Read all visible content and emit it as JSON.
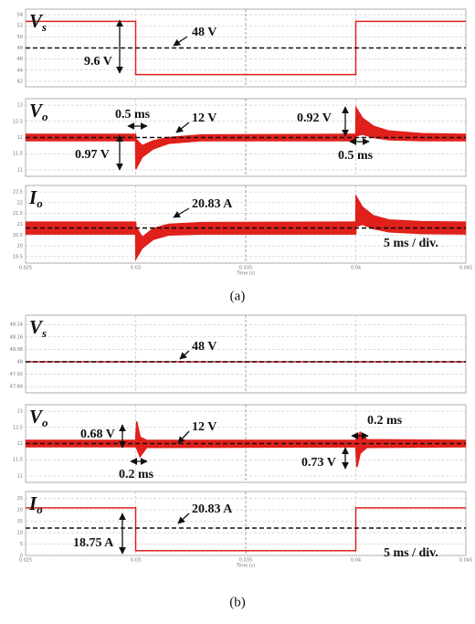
{
  "chart_data": [
    {
      "type": "line",
      "label": "V",
      "label_sub": "s",
      "xlim": [
        0.025,
        0.045
      ],
      "xticks": [
        0.025,
        0.03,
        0.035,
        0.04,
        0.045
      ],
      "ylim": [
        41,
        55
      ],
      "yticks": [
        42,
        44,
        46,
        48,
        50,
        52,
        54
      ],
      "grid": true,
      "ref": 48,
      "x": [
        0.025,
        0.03,
        0.03,
        0.04,
        0.04,
        0.045
      ],
      "series": [
        {
          "color": "#e0201b",
          "values": [
            52.8,
            52.8,
            43.2,
            43.2,
            52.8,
            52.8
          ]
        }
      ],
      "annotations": [
        "48 V",
        "9.6 V"
      ]
    },
    {
      "type": "band",
      "label": "V",
      "label_sub": "o",
      "xlim": [
        0.025,
        0.045
      ],
      "xticks": [
        0.025,
        0.03,
        0.035,
        0.04,
        0.045
      ],
      "ylim": [
        10.8,
        13.2
      ],
      "yticks": [
        11,
        11.5,
        12,
        12.5,
        13
      ],
      "grid": true,
      "ref": 12,
      "x": [
        0.025,
        0.03,
        0.03001,
        0.0303,
        0.0308,
        0.0315,
        0.033,
        0.04,
        0.04001,
        0.0403,
        0.0408,
        0.0415,
        0.043,
        0.045
      ],
      "series": [
        {
          "color": "#e0201b",
          "values": [
            12.1,
            12.1,
            11.95,
            11.75,
            11.9,
            12.0,
            12.08,
            12.1,
            12.92,
            12.6,
            12.35,
            12.2,
            12.12,
            12.1
          ]
        },
        {
          "color": "#e0201b",
          "values": [
            11.9,
            11.9,
            11.03,
            11.4,
            11.65,
            11.82,
            11.9,
            11.9,
            12.05,
            12.1,
            12.0,
            11.93,
            11.9,
            11.9
          ]
        }
      ],
      "annotations": [
        "0.5 ms",
        "12 V",
        "0.97 V",
        "0.92 V",
        "0.5 ms"
      ]
    },
    {
      "type": "band",
      "label": "I",
      "label_sub": "o",
      "xlim": [
        0.025,
        0.045
      ],
      "xticks": [
        0.025,
        0.03,
        0.035,
        0.04,
        0.045
      ],
      "ylim": [
        19.2,
        22.8
      ],
      "yticks": [
        19.5,
        20,
        20.5,
        21,
        21.5,
        22,
        22.5
      ],
      "grid": true,
      "ref": 20.83,
      "xlabel": "Time (s)",
      "x": [
        0.025,
        0.03,
        0.03001,
        0.0303,
        0.0308,
        0.0315,
        0.033,
        0.04,
        0.04001,
        0.0403,
        0.0408,
        0.0415,
        0.043,
        0.045
      ],
      "series": [
        {
          "color": "#e0201b",
          "values": [
            21.1,
            21.1,
            20.9,
            20.4,
            20.8,
            21.0,
            21.08,
            21.1,
            22.3,
            21.8,
            21.4,
            21.2,
            21.12,
            21.1
          ]
        },
        {
          "color": "#e0201b",
          "values": [
            20.55,
            20.55,
            19.4,
            19.9,
            20.3,
            20.5,
            20.55,
            20.55,
            20.9,
            21.0,
            20.8,
            20.65,
            20.57,
            20.55
          ]
        }
      ],
      "annotations": [
        "20.83 A",
        "5 ms / div."
      ],
      "caption": "(a)"
    },
    {
      "type": "line",
      "label": "V",
      "label_sub": "s",
      "xlim": [
        0.025,
        0.045
      ],
      "xticks": [
        0.025,
        0.03,
        0.035,
        0.04,
        0.045
      ],
      "ylim": [
        47.8,
        48.3
      ],
      "yticks": [
        47.84,
        47.92,
        48,
        48.08,
        48.16,
        48.24
      ],
      "grid": true,
      "ref": 48,
      "x": [
        0.025,
        0.045
      ],
      "series": [
        {
          "color": "#e0201b",
          "values": [
            48,
            48
          ]
        }
      ],
      "annotations": [
        "48 V"
      ]
    },
    {
      "type": "band",
      "label": "V",
      "label_sub": "o",
      "xlim": [
        0.025,
        0.045
      ],
      "xticks": [
        0.025,
        0.03,
        0.035,
        0.04,
        0.045
      ],
      "ylim": [
        10.8,
        13.2
      ],
      "yticks": [
        11,
        11.5,
        12,
        12.5,
        13
      ],
      "grid": true,
      "ref": 12,
      "x": [
        0.025,
        0.03,
        0.03005,
        0.0302,
        0.0305,
        0.04,
        0.04005,
        0.0402,
        0.0405,
        0.045
      ],
      "series": [
        {
          "color": "#e0201b",
          "values": [
            12.1,
            12.1,
            12.68,
            12.2,
            12.1,
            12.1,
            12.2,
            12.35,
            12.12,
            12.1
          ]
        },
        {
          "color": "#e0201b",
          "values": [
            11.9,
            11.9,
            11.85,
            11.6,
            11.88,
            11.9,
            11.27,
            11.7,
            11.88,
            11.9
          ]
        }
      ],
      "annotations": [
        "0.68 V",
        "12 V",
        "0.2 ms",
        "0.2 ms",
        "0.73 V"
      ]
    },
    {
      "type": "line",
      "label": "I",
      "label_sub": "o",
      "xlim": [
        0.025,
        0.045
      ],
      "xticks": [
        0.025,
        0.03,
        0.035,
        0.04,
        0.045
      ],
      "ylim": [
        0,
        28
      ],
      "yticks": [
        0,
        5,
        10,
        15,
        20,
        25
      ],
      "grid": true,
      "ref": 12,
      "xlabel": "Time (s)",
      "x": [
        0.025,
        0.03,
        0.03,
        0.04,
        0.04,
        0.045
      ],
      "series": [
        {
          "color": "#e0201b",
          "values": [
            20.83,
            20.83,
            2.08,
            2.08,
            20.83,
            20.83
          ]
        }
      ],
      "annotations": [
        "20.83 A",
        "18.75 A",
        "5 ms / div."
      ],
      "caption": "(b)"
    }
  ]
}
